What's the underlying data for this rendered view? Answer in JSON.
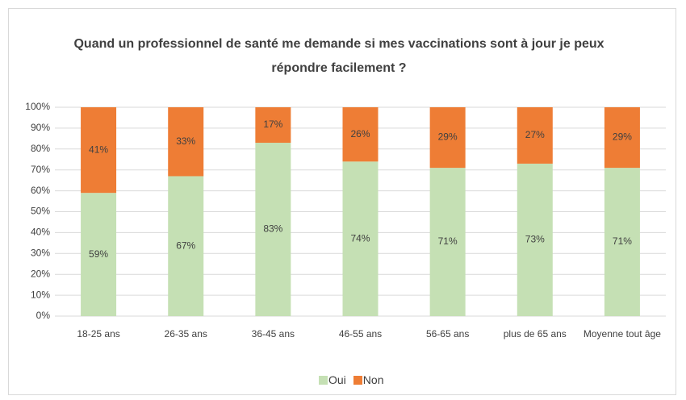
{
  "chart_data": {
    "type": "stacked_bar",
    "title": "Quand un professionnel de santé me demande si mes vaccinations sont à jour je peux répondre facilement ?",
    "categories": [
      "18-25 ans",
      "26-35 ans",
      "36-45 ans",
      "46-55 ans",
      "56-65 ans",
      "plus de 65 ans",
      "Moyenne tout âge"
    ],
    "series": [
      {
        "name": "Oui",
        "color": "#c5e0b4",
        "values": [
          59,
          67,
          83,
          74,
          71,
          73,
          71
        ],
        "value_labels": [
          "59%",
          "67%",
          "83%",
          "74%",
          "71%",
          "73%",
          "71%"
        ]
      },
      {
        "name": "Non",
        "color": "#ee7d35",
        "values": [
          41,
          33,
          17,
          26,
          29,
          27,
          29
        ],
        "value_labels": [
          "41%",
          "33%",
          "17%",
          "26%",
          "29%",
          "27%",
          "29%"
        ]
      }
    ],
    "ylim": [
      0,
      100
    ],
    "yticks": [
      {
        "value": 0,
        "label": "0%"
      },
      {
        "value": 10,
        "label": "10%"
      },
      {
        "value": 20,
        "label": "20%"
      },
      {
        "value": 30,
        "label": "30%"
      },
      {
        "value": 40,
        "label": "40%"
      },
      {
        "value": 50,
        "label": "50%"
      },
      {
        "value": 60,
        "label": "60%"
      },
      {
        "value": 70,
        "label": "70%"
      },
      {
        "value": 80,
        "label": "80%"
      },
      {
        "value": 90,
        "label": "90%"
      },
      {
        "value": 100,
        "label": "100%"
      }
    ],
    "grid": true,
    "legend": "bottom"
  }
}
